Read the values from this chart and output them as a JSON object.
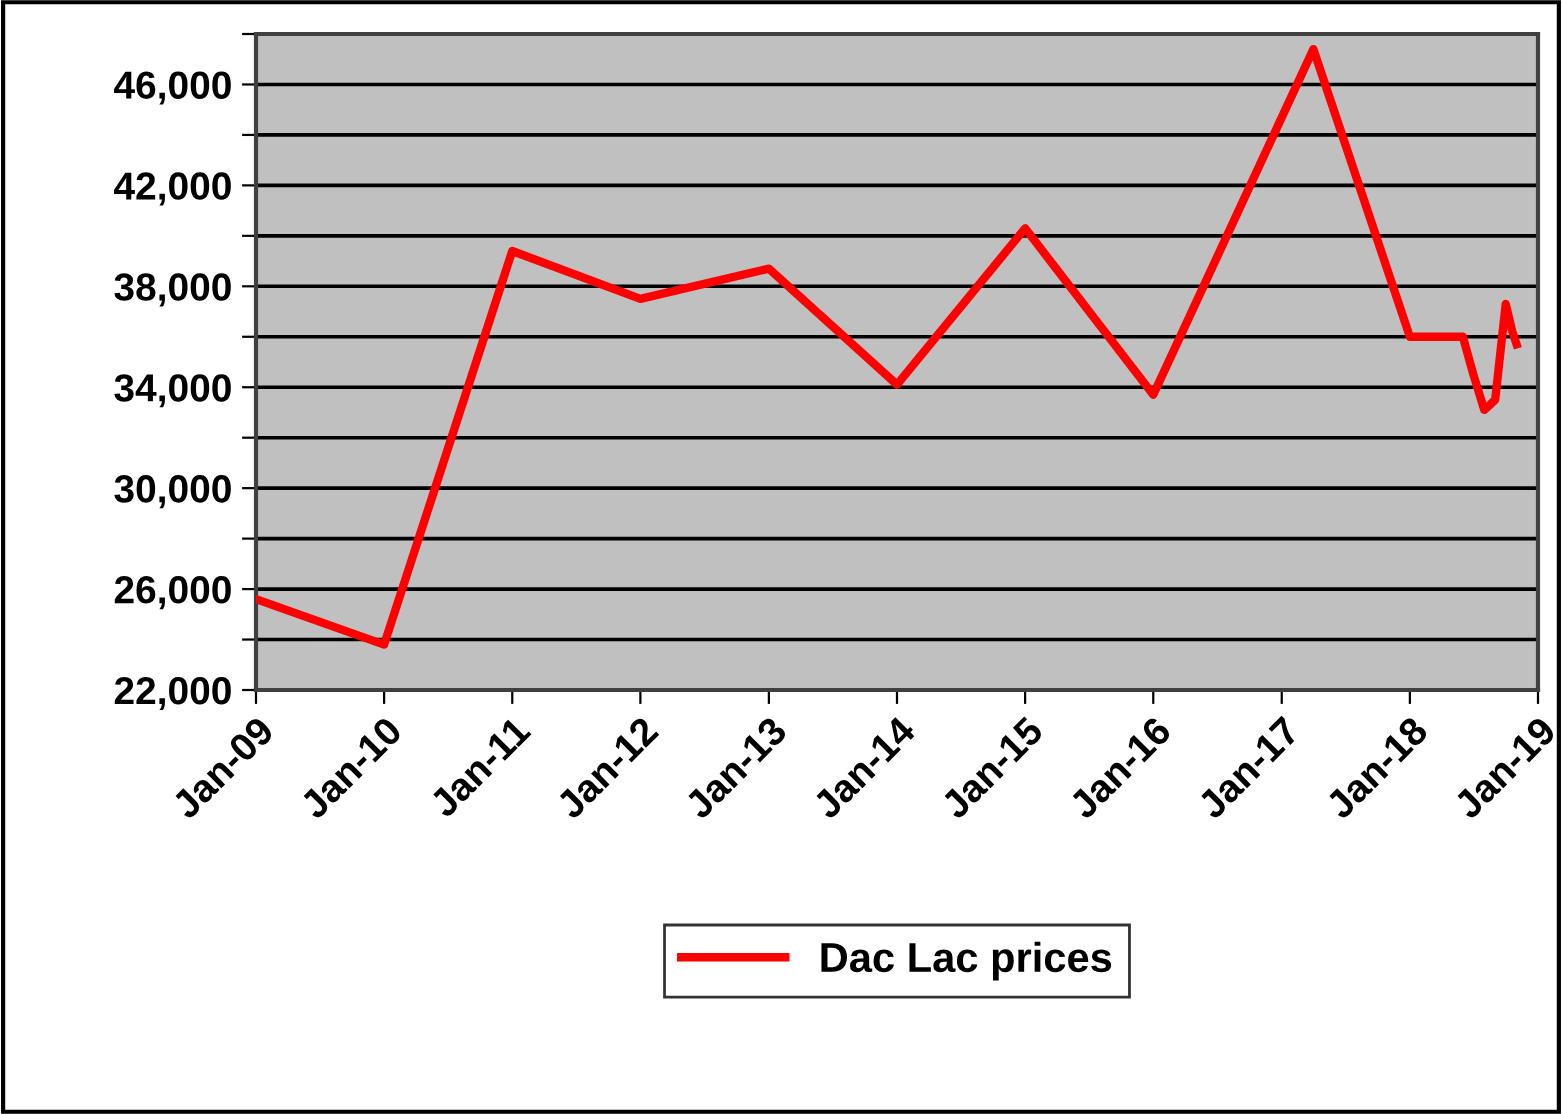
{
  "chart_data": {
    "type": "line",
    "x": [
      "2009-01",
      "2010-01",
      "2011-01",
      "2012-01",
      "2013-01",
      "2014-01",
      "2015-01",
      "2016-01",
      "2017-04",
      "2018-01",
      "2018-06",
      "2018-07",
      "2018-08",
      "2018-09",
      "2018-10-01",
      "2018-10-20",
      "2018-11-01"
    ],
    "series": [
      {
        "name": "Dac Lac prices",
        "color": "#ff0000",
        "values": [
          25600,
          23800,
          39400,
          37500,
          38700,
          34100,
          40300,
          33700,
          47400,
          36000,
          36000,
          34500,
          33100,
          33500,
          37300,
          36200,
          35700
        ]
      }
    ],
    "xlim": [
      "2009-01",
      "2019-01"
    ],
    "xticks": [
      {
        "value": "2009-01",
        "label": "Jan-09"
      },
      {
        "value": "2010-01",
        "label": "Jan-10"
      },
      {
        "value": "2011-01",
        "label": "Jan-11"
      },
      {
        "value": "2012-01",
        "label": "Jan-12"
      },
      {
        "value": "2013-01",
        "label": "Jan-13"
      },
      {
        "value": "2014-01",
        "label": "Jan-14"
      },
      {
        "value": "2015-01",
        "label": "Jan-15"
      },
      {
        "value": "2016-01",
        "label": "Jan-16"
      },
      {
        "value": "2017-01",
        "label": "Jan-17"
      },
      {
        "value": "2018-01",
        "label": "Jan-18"
      },
      {
        "value": "2019-01",
        "label": "Jan-19"
      }
    ],
    "ylim": [
      22000,
      48000
    ],
    "yticks": [
      {
        "value": 22000,
        "label": "22,000"
      },
      {
        "value": 24000,
        "label": null
      },
      {
        "value": 26000,
        "label": "26,000"
      },
      {
        "value": 28000,
        "label": null
      },
      {
        "value": 30000,
        "label": "30,000"
      },
      {
        "value": 32000,
        "label": null
      },
      {
        "value": 34000,
        "label": "34,000"
      },
      {
        "value": 36000,
        "label": null
      },
      {
        "value": 38000,
        "label": "38,000"
      },
      {
        "value": 40000,
        "label": null
      },
      {
        "value": 42000,
        "label": "42,000"
      },
      {
        "value": 44000,
        "label": null
      },
      {
        "value": 46000,
        "label": "46,000"
      },
      {
        "value": 48000,
        "label": null
      }
    ],
    "grid": "y",
    "legend": "bottom",
    "marker": "none",
    "line_style": "solid"
  }
}
